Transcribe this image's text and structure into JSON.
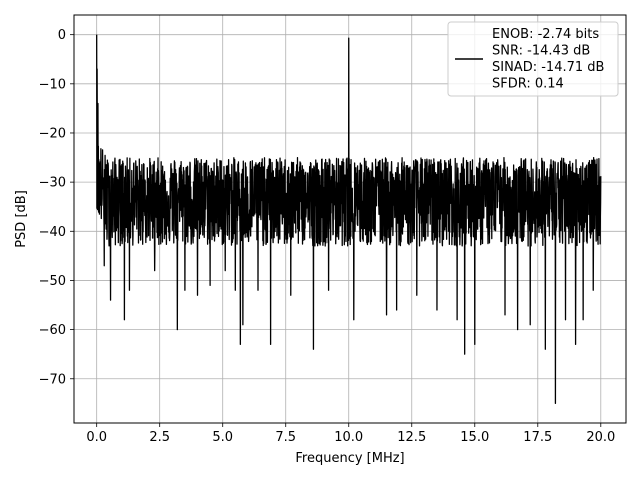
{
  "chart_data": {
    "type": "line",
    "xlabel": "Frequency [MHz]",
    "ylabel": "PSD [dB]",
    "xlim": [
      -0.9,
      21.0
    ],
    "ylim": [
      -79,
      4
    ],
    "xticks": [
      0.0,
      2.5,
      5.0,
      7.5,
      10.0,
      12.5,
      15.0,
      17.5,
      20.0
    ],
    "xtick_labels": [
      "0.0",
      "2.5",
      "5.0",
      "7.5",
      "10.0",
      "12.5",
      "15.0",
      "17.5",
      "20.0"
    ],
    "yticks": [
      0,
      -10,
      -20,
      -30,
      -40,
      -50,
      -60,
      -70
    ],
    "ytick_labels": [
      "0",
      "−10",
      "−20",
      "−30",
      "−40",
      "−50",
      "−60",
      "−70"
    ],
    "grid": true,
    "legend_position": "upper right",
    "legend_lines": [
      "ENOB: -2.74 bits",
      "SNR: -14.43 dB",
      "SINAD: -14.71 dB",
      "SFDR: 0.14"
    ],
    "series": [
      {
        "color": "#000000",
        "x_start": 0.0,
        "x_end": 20.0,
        "noise_upper_env": -25,
        "noise_center": -33,
        "noise_lower_env": -43,
        "peaks": [
          {
            "x": 0.0,
            "y": 0.0
          },
          {
            "x": 0.02,
            "y": -7
          },
          {
            "x": 0.05,
            "y": -14
          },
          {
            "x": 10.0,
            "y": -0.7
          }
        ],
        "dips": [
          {
            "x": 0.3,
            "y": -47
          },
          {
            "x": 0.55,
            "y": -54
          },
          {
            "x": 1.1,
            "y": -58
          },
          {
            "x": 1.3,
            "y": -52
          },
          {
            "x": 2.3,
            "y": -48
          },
          {
            "x": 3.2,
            "y": -60
          },
          {
            "x": 3.5,
            "y": -52
          },
          {
            "x": 4.0,
            "y": -53
          },
          {
            "x": 4.5,
            "y": -51
          },
          {
            "x": 5.1,
            "y": -48
          },
          {
            "x": 5.5,
            "y": -52
          },
          {
            "x": 5.7,
            "y": -63
          },
          {
            "x": 5.8,
            "y": -59
          },
          {
            "x": 6.4,
            "y": -52
          },
          {
            "x": 6.9,
            "y": -63
          },
          {
            "x": 7.7,
            "y": -53
          },
          {
            "x": 8.6,
            "y": -64
          },
          {
            "x": 9.2,
            "y": -52
          },
          {
            "x": 10.2,
            "y": -58
          },
          {
            "x": 11.5,
            "y": -57
          },
          {
            "x": 11.9,
            "y": -56
          },
          {
            "x": 12.7,
            "y": -53
          },
          {
            "x": 13.5,
            "y": -56
          },
          {
            "x": 14.3,
            "y": -58
          },
          {
            "x": 14.6,
            "y": -65
          },
          {
            "x": 15.0,
            "y": -63
          },
          {
            "x": 16.2,
            "y": -57
          },
          {
            "x": 16.7,
            "y": -60
          },
          {
            "x": 17.2,
            "y": -59
          },
          {
            "x": 17.8,
            "y": -64
          },
          {
            "x": 18.2,
            "y": -75
          },
          {
            "x": 18.6,
            "y": -58
          },
          {
            "x": 19.0,
            "y": -63
          },
          {
            "x": 19.3,
            "y": -58
          },
          {
            "x": 19.7,
            "y": -52
          }
        ]
      }
    ]
  }
}
